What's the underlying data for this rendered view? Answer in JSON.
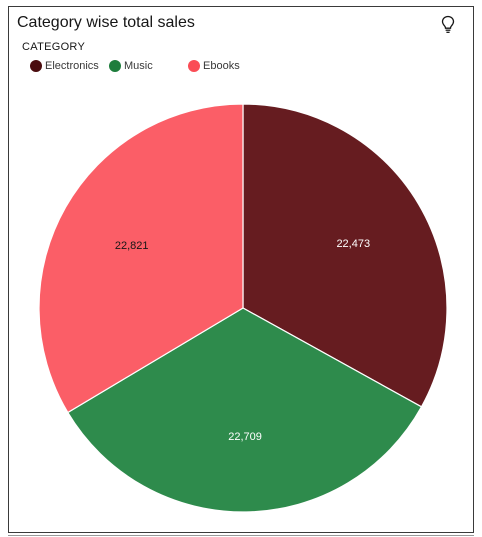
{
  "card": {
    "title": "Category wise total sales"
  },
  "icons": {
    "insight": "lightbulb-icon"
  },
  "legend": {
    "title": "CATEGORY",
    "items": [
      {
        "label": "Electronics",
        "color": "#4a0c0e"
      },
      {
        "label": "Music",
        "color": "#1e7d3c"
      },
      {
        "label": "Ebooks",
        "color": "#fa4d56"
      }
    ]
  },
  "chart_data": {
    "type": "pie",
    "title": "Category wise total sales",
    "categories": [
      "Electronics",
      "Music",
      "Ebooks"
    ],
    "values": [
      22473,
      22709,
      22821
    ],
    "value_labels": [
      "22,473",
      "22,709",
      "22,821"
    ],
    "colors": [
      "#661c20",
      "#2e8b4c",
      "#fb5e67"
    ],
    "label_colors": [
      "#ffffff",
      "#ffffff",
      "#161616"
    ],
    "start_angle_deg": 0,
    "direction": "clockwise",
    "legend_position": "top-left"
  }
}
